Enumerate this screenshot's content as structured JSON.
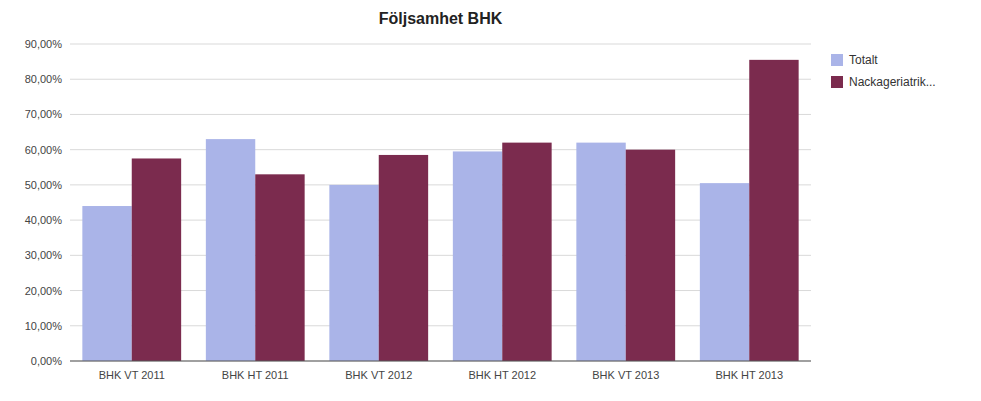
{
  "chart_data": {
    "type": "bar",
    "title": "Följsamhet BHK",
    "categories": [
      "BHK VT 2011",
      "BHK HT 2011",
      "BHK VT 2012",
      "BHK HT 2012",
      "BHK VT 2013",
      "BHK HT 2013"
    ],
    "series": [
      {
        "name": "Totalt",
        "color": "#aab4e8",
        "values": [
          0.44,
          0.63,
          0.5,
          0.595,
          0.62,
          0.505
        ]
      },
      {
        "name": "Nackageriatrik...",
        "color": "#7b2b4e",
        "values": [
          0.575,
          0.53,
          0.585,
          0.62,
          0.6,
          0.855
        ]
      }
    ],
    "ylim": [
      0.0,
      0.9
    ],
    "yticks": [
      {
        "value": 0.0,
        "label": "0,00%"
      },
      {
        "value": 0.1,
        "label": "10,00%"
      },
      {
        "value": 0.2,
        "label": "20,00%"
      },
      {
        "value": 0.3,
        "label": "30,00%"
      },
      {
        "value": 0.4,
        "label": "40,00%"
      },
      {
        "value": 0.5,
        "label": "50,00%"
      },
      {
        "value": 0.6,
        "label": "60,00%"
      },
      {
        "value": 0.7,
        "label": "70,00%"
      },
      {
        "value": 0.8,
        "label": "80,00%"
      },
      {
        "value": 0.9,
        "label": "90,00%"
      }
    ],
    "grid": true,
    "legend": "right"
  }
}
